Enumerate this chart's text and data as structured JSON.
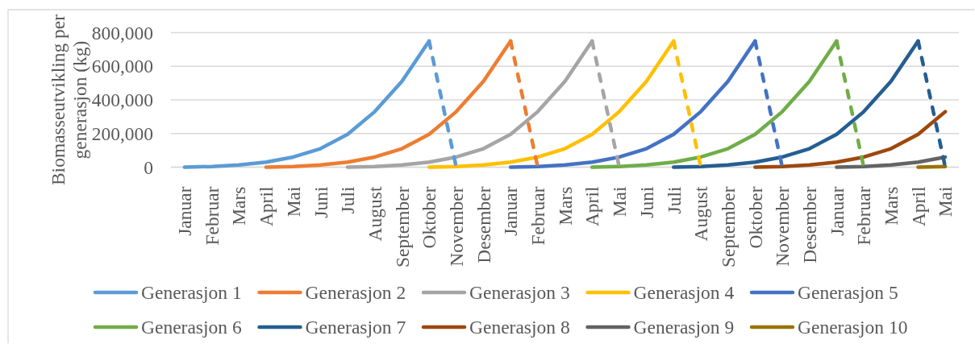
{
  "chart_data": {
    "type": "line",
    "ylabel": "Biomasseutvikling per generasjon (kg)",
    "categories": [
      "Januar",
      "Februar",
      "Mars",
      "April",
      "Mai",
      "Juni",
      "Juli",
      "August",
      "September",
      "Oktober",
      "November",
      "Desember",
      "Januar",
      "Februar",
      "Mars",
      "April",
      "Mai",
      "Juni",
      "Juli",
      "August",
      "September",
      "Oktober",
      "November",
      "Desember",
      "Januar",
      "Februar",
      "Mars",
      "April",
      "Mai"
    ],
    "ylim": [
      0,
      800000
    ],
    "yticks": [
      0,
      {
        "value": 200000,
        "label": "200,000"
      },
      {
        "value": 400000,
        "label": "400,000"
      },
      {
        "value": 600000,
        "label": "600,000"
      },
      {
        "value": 800000,
        "label": "800,000"
      }
    ],
    "grid": "y",
    "legend": "bottom",
    "series": [
      {
        "name": "Generasjon 1",
        "color": "#5b9bd5",
        "values": [
          0,
          4000,
          13000,
          30000,
          60000,
          110000,
          195000,
          330000,
          510000,
          750000,
          null,
          null,
          null,
          null,
          null,
          null,
          null,
          null,
          null,
          null,
          null,
          null,
          null,
          null,
          null,
          null,
          null,
          null,
          null
        ]
      },
      {
        "name": "Generasjon 2",
        "color": "#ed7d31",
        "values": [
          null,
          null,
          null,
          0,
          4000,
          13000,
          30000,
          60000,
          110000,
          195000,
          330000,
          510000,
          750000,
          null,
          null,
          null,
          null,
          null,
          null,
          null,
          null,
          null,
          null,
          null,
          null,
          null,
          null,
          null,
          null
        ]
      },
      {
        "name": "Generasjon 3",
        "color": "#a5a5a5",
        "values": [
          null,
          null,
          null,
          null,
          null,
          null,
          0,
          4000,
          13000,
          30000,
          60000,
          110000,
          195000,
          330000,
          510000,
          750000,
          null,
          null,
          null,
          null,
          null,
          null,
          null,
          null,
          null,
          null,
          null,
          null,
          null
        ]
      },
      {
        "name": "Generasjon 4",
        "color": "#ffc000",
        "values": [
          null,
          null,
          null,
          null,
          null,
          null,
          null,
          null,
          null,
          0,
          4000,
          13000,
          30000,
          60000,
          110000,
          195000,
          330000,
          510000,
          750000,
          null,
          null,
          null,
          null,
          null,
          null,
          null,
          null,
          null,
          null
        ]
      },
      {
        "name": "Generasjon 5",
        "color": "#4472c4",
        "values": [
          null,
          null,
          null,
          null,
          null,
          null,
          null,
          null,
          null,
          null,
          null,
          null,
          0,
          4000,
          13000,
          30000,
          60000,
          110000,
          195000,
          330000,
          510000,
          750000,
          null,
          null,
          null,
          null,
          null,
          null,
          null
        ]
      },
      {
        "name": "Generasjon 6",
        "color": "#70ad47",
        "values": [
          null,
          null,
          null,
          null,
          null,
          null,
          null,
          null,
          null,
          null,
          null,
          null,
          null,
          null,
          null,
          0,
          4000,
          13000,
          30000,
          60000,
          110000,
          195000,
          330000,
          510000,
          750000,
          null,
          null,
          null,
          null
        ]
      },
      {
        "name": "Generasjon 7",
        "color": "#255e91",
        "values": [
          null,
          null,
          null,
          null,
          null,
          null,
          null,
          null,
          null,
          null,
          null,
          null,
          null,
          null,
          null,
          null,
          null,
          null,
          0,
          4000,
          13000,
          30000,
          60000,
          110000,
          195000,
          330000,
          510000,
          750000,
          null
        ]
      },
      {
        "name": "Generasjon 8",
        "color": "#9e480e",
        "values": [
          null,
          null,
          null,
          null,
          null,
          null,
          null,
          null,
          null,
          null,
          null,
          null,
          null,
          null,
          null,
          null,
          null,
          null,
          null,
          null,
          null,
          0,
          4000,
          13000,
          30000,
          60000,
          110000,
          195000,
          330000
        ]
      },
      {
        "name": "Generasjon 9",
        "color": "#636363",
        "values": [
          null,
          null,
          null,
          null,
          null,
          null,
          null,
          null,
          null,
          null,
          null,
          null,
          null,
          null,
          null,
          null,
          null,
          null,
          null,
          null,
          null,
          null,
          null,
          null,
          0,
          4000,
          13000,
          30000,
          60000
        ]
      },
      {
        "name": "Generasjon 10",
        "color": "#997300",
        "values": [
          null,
          null,
          null,
          null,
          null,
          null,
          null,
          null,
          null,
          null,
          null,
          null,
          null,
          null,
          null,
          null,
          null,
          null,
          null,
          null,
          null,
          null,
          null,
          null,
          null,
          null,
          null,
          0,
          4000
        ]
      },
      {
        "color": "#5b9bd5",
        "line_style": "dashed",
        "values": [
          null,
          null,
          null,
          null,
          null,
          null,
          null,
          null,
          null,
          750000,
          0,
          null,
          null,
          null,
          null,
          null,
          null,
          null,
          null,
          null,
          null,
          null,
          null,
          null,
          null,
          null,
          null,
          null,
          null
        ]
      },
      {
        "color": "#ed7d31",
        "line_style": "dashed",
        "values": [
          null,
          null,
          null,
          null,
          null,
          null,
          null,
          null,
          null,
          null,
          null,
          null,
          750000,
          0,
          null,
          null,
          null,
          null,
          null,
          null,
          null,
          null,
          null,
          null,
          null,
          null,
          null,
          null,
          null
        ]
      },
      {
        "color": "#a5a5a5",
        "line_style": "dashed",
        "values": [
          null,
          null,
          null,
          null,
          null,
          null,
          null,
          null,
          null,
          null,
          null,
          null,
          null,
          null,
          null,
          750000,
          0,
          null,
          null,
          null,
          null,
          null,
          null,
          null,
          null,
          null,
          null,
          null,
          null
        ]
      },
      {
        "color": "#ffc000",
        "line_style": "dashed",
        "values": [
          null,
          null,
          null,
          null,
          null,
          null,
          null,
          null,
          null,
          null,
          null,
          null,
          null,
          null,
          null,
          null,
          null,
          null,
          750000,
          0,
          null,
          null,
          null,
          null,
          null,
          null,
          null,
          null,
          null
        ]
      },
      {
        "color": "#4472c4",
        "line_style": "dashed",
        "values": [
          null,
          null,
          null,
          null,
          null,
          null,
          null,
          null,
          null,
          null,
          null,
          null,
          null,
          null,
          null,
          null,
          null,
          null,
          null,
          null,
          null,
          750000,
          0,
          null,
          null,
          null,
          null,
          null,
          null
        ]
      },
      {
        "color": "#70ad47",
        "line_style": "dashed",
        "values": [
          null,
          null,
          null,
          null,
          null,
          null,
          null,
          null,
          null,
          null,
          null,
          null,
          null,
          null,
          null,
          null,
          null,
          null,
          null,
          null,
          null,
          null,
          null,
          null,
          750000,
          0,
          null,
          null,
          null
        ]
      },
      {
        "color": "#255e91",
        "line_style": "dashed",
        "values": [
          null,
          null,
          null,
          null,
          null,
          null,
          null,
          null,
          null,
          null,
          null,
          null,
          null,
          null,
          null,
          null,
          null,
          null,
          null,
          null,
          null,
          null,
          null,
          null,
          null,
          null,
          null,
          750000,
          0
        ]
      }
    ]
  }
}
